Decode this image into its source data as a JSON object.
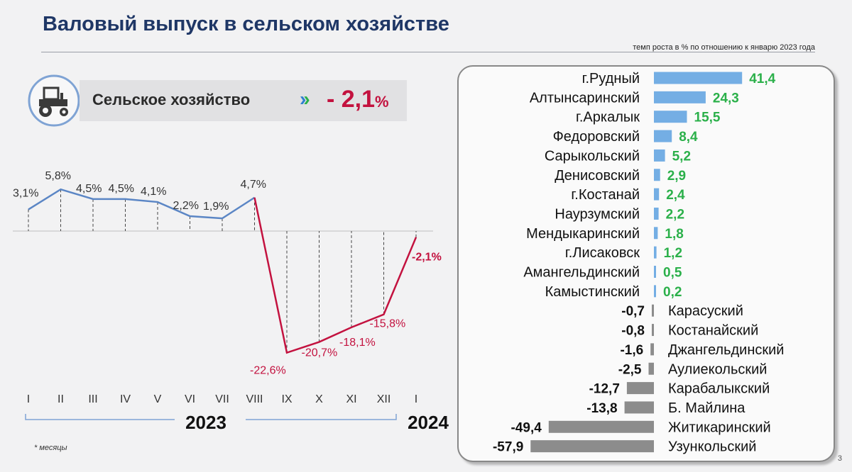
{
  "title": "Валовый выпуск в сельском хозяйстве",
  "subtitle": "темп роста в % по отношению к январю  2023 года",
  "summary": {
    "icon": "tractor-icon",
    "label": "Сельское хозяйство",
    "chevron_icon": "double-chevron-right-icon",
    "value": "- 2,1",
    "unit": "%"
  },
  "footnote": "* месяцы",
  "page_number": "3",
  "colors": {
    "title": "#1f3766",
    "positive_line": "#5b86c5",
    "negative_line": "#c3123f",
    "positive_bar": "#74aee4",
    "negative_bar": "#8c8c8c",
    "positive_value": "#2bb04a"
  },
  "chart_data": [
    {
      "type": "line",
      "x": [
        "I",
        "II",
        "III",
        "IV",
        "V",
        "VI",
        "VII",
        "VIII",
        "IX",
        "X",
        "XI",
        "XII",
        "I"
      ],
      "year_labels": [
        "2023",
        "2024"
      ],
      "series": [
        {
          "values": [
            3.1,
            5.8,
            4.5,
            4.5,
            4.1,
            2.2,
            1.9,
            4.7,
            -22.6,
            -20.7,
            -18.1,
            -15.8,
            -2.1
          ]
        }
      ],
      "labels": [
        "3,1%",
        "5,8%",
        "4,5%",
        "4,5%",
        "4,1%",
        "2,2%",
        "1,9%",
        "4,7%",
        "-22,6%",
        "-20,7%",
        "-18,1%",
        "-15,8%",
        "-2,1%"
      ],
      "grid": false
    },
    {
      "type": "bar",
      "orientation": "horizontal",
      "categories": [
        "г.Рудный",
        "Алтынсаринский",
        "г.Аркалык",
        "Федоровский",
        "Сарыкольский",
        "Денисовский",
        "г.Костанай",
        "Наурзумский",
        "Мендыкаринский",
        "г.Лисаковск",
        "Амангельдинский",
        "Камыстинский",
        "Карасуский",
        "Костанайский",
        "Джангельдинский",
        "Аулиекольский",
        "Карабалыкский",
        "Б. Майлина",
        "Житикаринский",
        "Узункольский"
      ],
      "values": [
        41.4,
        24.3,
        15.5,
        8.4,
        5.2,
        2.9,
        2.4,
        2.2,
        1.8,
        1.2,
        0.5,
        0.2,
        -0.7,
        -0.8,
        -1.6,
        -2.5,
        -12.7,
        -13.8,
        -49.4,
        -57.9
      ],
      "labels": [
        "41,4",
        "24,3",
        "15,5",
        "8,4",
        "5,2",
        "2,9",
        "2,4",
        "2,2",
        "1,8",
        "1,2",
        "0,5",
        "0,2",
        "-0,7",
        "-0,8",
        "-1,6",
        "-2,5",
        "-12,7",
        "-13,8",
        "-49,4",
        "-57,9"
      ]
    }
  ]
}
